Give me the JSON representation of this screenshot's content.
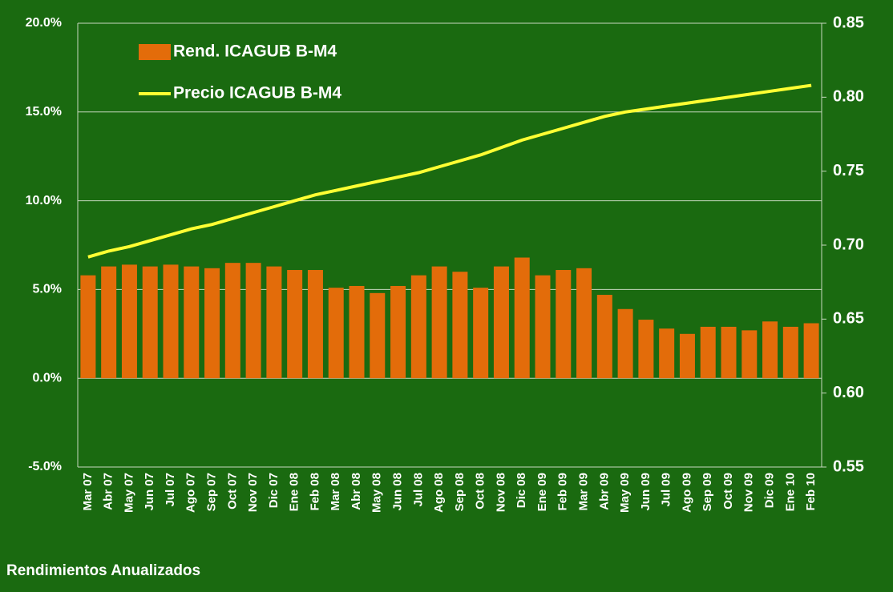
{
  "chart_data": {
    "type": "bar",
    "categories": [
      "Mar 07",
      "Abr 07",
      "May 07",
      "Jun 07",
      "Jul 07",
      "Ago 07",
      "Sep 07",
      "Oct 07",
      "Nov 07",
      "Dic 07",
      "Ene 08",
      "Feb 08",
      "Mar 08",
      "Abr 08",
      "May 08",
      "Jun 08",
      "Jul 08",
      "Ago 08",
      "Sep 08",
      "Oct 08",
      "Nov 08",
      "Dic 08",
      "Ene 09",
      "Feb 09",
      "Mar 09",
      "Abr 09",
      "May 09",
      "Jun 09",
      "Jul 09",
      "Ago 09",
      "Sep 09",
      "Oct 09",
      "Nov 09",
      "Dic 09",
      "Ene 10",
      "Feb 10"
    ],
    "series": [
      {
        "name": "Rend. ICAGUB B-M4",
        "color": "#e36c0a",
        "type": "bar",
        "values": [
          5.8,
          6.3,
          6.4,
          6.3,
          6.4,
          6.3,
          6.2,
          6.5,
          6.5,
          6.3,
          6.1,
          6.1,
          5.1,
          5.2,
          4.8,
          5.2,
          5.8,
          6.3,
          6.0,
          5.1,
          6.3,
          6.8,
          5.8,
          6.1,
          6.2,
          4.7,
          3.9,
          3.3,
          2.8,
          2.5,
          2.9,
          2.9,
          2.7,
          3.2,
          2.9,
          3.1
        ]
      },
      {
        "name": "Precio ICAGUB B-M4",
        "color": "#ffff33",
        "type": "line",
        "axis": "y2",
        "values": [
          0.692,
          0.696,
          0.699,
          0.703,
          0.707,
          0.711,
          0.714,
          0.718,
          0.722,
          0.726,
          0.73,
          0.734,
          0.737,
          0.74,
          0.743,
          0.746,
          0.749,
          0.753,
          0.757,
          0.761,
          0.766,
          0.771,
          0.775,
          0.779,
          0.783,
          0.787,
          0.79,
          0.792,
          0.794,
          0.796,
          0.798,
          0.8,
          0.802,
          0.804,
          0.806,
          0.808
        ]
      }
    ],
    "ylim": [
      -5,
      20
    ],
    "yticks": [
      {
        "value": -5,
        "label": "-5.0%"
      },
      {
        "value": 0,
        "label": "0.0%"
      },
      {
        "value": 5,
        "label": "5.0%"
      },
      {
        "value": 10,
        "label": "10.0%"
      },
      {
        "value": 15,
        "label": "15.0%"
      },
      {
        "value": 20,
        "label": "20.0%"
      }
    ],
    "y2lim": [
      0.55,
      0.85
    ],
    "y2ticks": [
      0.55,
      {
        "value": 0.6,
        "label": "0.60"
      },
      0.65,
      {
        "value": 0.7,
        "label": "0.70"
      },
      0.75,
      {
        "value": 0.8,
        "label": "0.80"
      },
      0.85
    ],
    "grid": true,
    "legend": "top-left",
    "annotation": "Rendimientos Anualizados"
  }
}
